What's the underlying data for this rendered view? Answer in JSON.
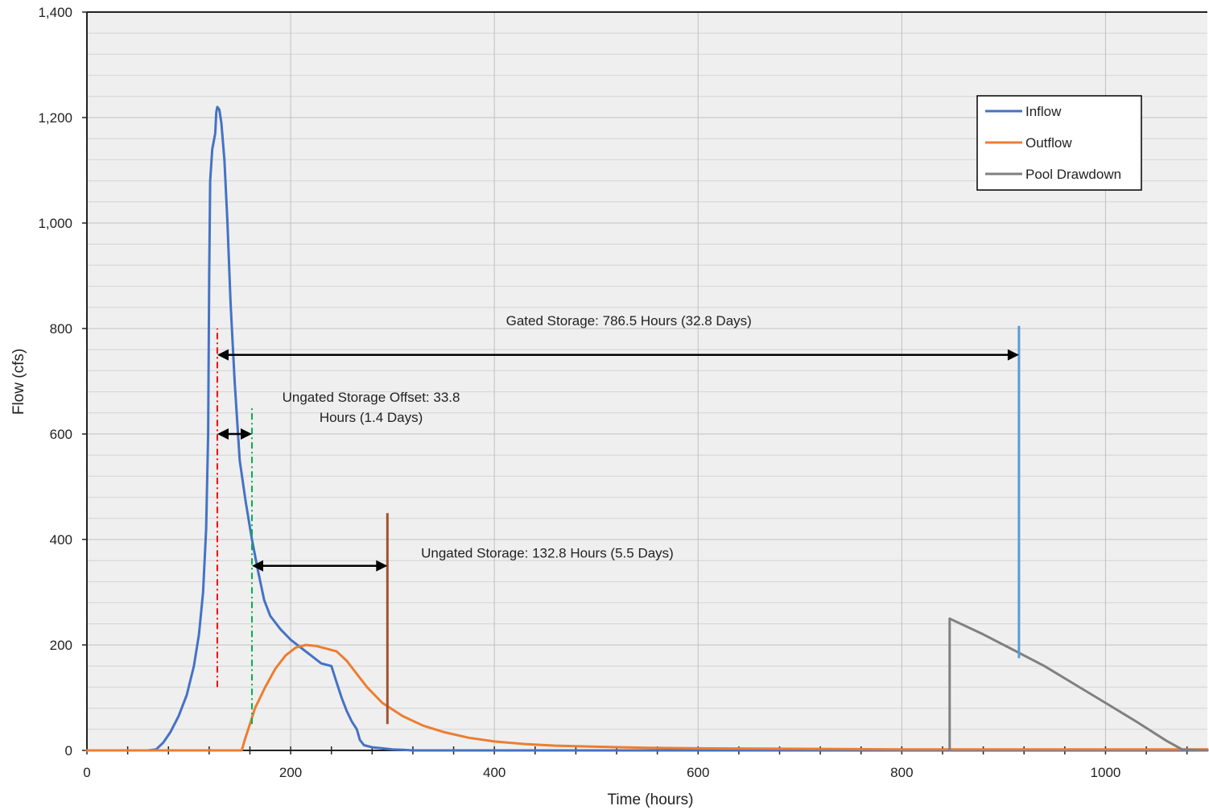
{
  "chart_data": {
    "type": "line",
    "title": "",
    "xlabel": "Time (hours)",
    "ylabel": "Flow (cfs)",
    "xlim": [
      0,
      1100
    ],
    "ylim": [
      0,
      1400
    ],
    "x_ticks": [
      0,
      200,
      400,
      600,
      800,
      1000
    ],
    "x_tick_labels": [
      "0",
      "200",
      "400",
      "600",
      "800",
      "1000"
    ],
    "y_ticks": [
      0,
      200,
      400,
      600,
      800,
      1000,
      1200,
      1400
    ],
    "y_tick_labels": [
      "0",
      "200",
      "400",
      "600",
      "800",
      "1,000",
      "1,200",
      "1,400"
    ],
    "grid": true,
    "legend_position": "top-right",
    "series": [
      {
        "name": "Inflow",
        "color": "#4472C4",
        "points": [
          [
            0,
            0
          ],
          [
            60,
            0
          ],
          [
            68,
            2
          ],
          [
            75,
            15
          ],
          [
            82,
            35
          ],
          [
            90,
            65
          ],
          [
            98,
            105
          ],
          [
            105,
            160
          ],
          [
            110,
            220
          ],
          [
            114,
            300
          ],
          [
            117,
            420
          ],
          [
            119,
            600
          ],
          [
            120,
            900
          ],
          [
            121,
            1080
          ],
          [
            123,
            1140
          ],
          [
            126,
            1170
          ],
          [
            127,
            1210
          ],
          [
            128,
            1220
          ],
          [
            130,
            1215
          ],
          [
            132,
            1190
          ],
          [
            135,
            1120
          ],
          [
            138,
            1000
          ],
          [
            141,
            850
          ],
          [
            145,
            700
          ],
          [
            150,
            550
          ],
          [
            156,
            470
          ],
          [
            162,
            400
          ],
          [
            168,
            340
          ],
          [
            174,
            285
          ],
          [
            180,
            255
          ],
          [
            190,
            230
          ],
          [
            200,
            210
          ],
          [
            210,
            195
          ],
          [
            220,
            180
          ],
          [
            230,
            165
          ],
          [
            240,
            160
          ],
          [
            245,
            130
          ],
          [
            250,
            100
          ],
          [
            255,
            75
          ],
          [
            260,
            55
          ],
          [
            265,
            40
          ],
          [
            268,
            20
          ],
          [
            272,
            10
          ],
          [
            280,
            6
          ],
          [
            290,
            4
          ],
          [
            300,
            2
          ],
          [
            310,
            1
          ],
          [
            320,
            0
          ],
          [
            1100,
            0
          ]
        ]
      },
      {
        "name": "Outflow",
        "color": "#ED7D31",
        "points": [
          [
            0,
            0
          ],
          [
            152,
            0
          ],
          [
            155,
            20
          ],
          [
            160,
            50
          ],
          [
            165,
            80
          ],
          [
            175,
            120
          ],
          [
            185,
            155
          ],
          [
            195,
            180
          ],
          [
            205,
            195
          ],
          [
            215,
            200
          ],
          [
            225,
            198
          ],
          [
            235,
            193
          ],
          [
            245,
            188
          ],
          [
            255,
            170
          ],
          [
            265,
            145
          ],
          [
            275,
            120
          ],
          [
            290,
            90
          ],
          [
            310,
            65
          ],
          [
            330,
            47
          ],
          [
            350,
            35
          ],
          [
            375,
            24
          ],
          [
            400,
            17
          ],
          [
            430,
            12
          ],
          [
            460,
            9
          ],
          [
            500,
            7
          ],
          [
            550,
            5
          ],
          [
            600,
            4
          ],
          [
            700,
            3
          ],
          [
            800,
            2
          ],
          [
            900,
            2
          ],
          [
            1000,
            2
          ],
          [
            1100,
            2
          ]
        ]
      },
      {
        "name": "Pool Drawdown",
        "color": "#808080",
        "points": [
          [
            847,
            0
          ],
          [
            847,
            250
          ],
          [
            880,
            220
          ],
          [
            910,
            190
          ],
          [
            940,
            160
          ],
          [
            970,
            125
          ],
          [
            1000,
            90
          ],
          [
            1030,
            55
          ],
          [
            1060,
            18
          ],
          [
            1075,
            2
          ],
          [
            1100,
            0
          ]
        ]
      }
    ],
    "reference_lines": [
      {
        "x": 128,
        "y_range": [
          120,
          800
        ],
        "color": "#FF0000",
        "style": "dash-dot"
      },
      {
        "x": 162,
        "y_range": [
          50,
          650
        ],
        "color": "#00B050",
        "style": "dash-dot"
      },
      {
        "x": 295,
        "y_range": [
          50,
          450
        ],
        "color": "#A0522D",
        "style": "solid"
      },
      {
        "x": 915,
        "y_range": [
          175,
          805
        ],
        "color": "#5B9BD5",
        "style": "solid"
      }
    ],
    "arrows": [
      {
        "x1": 128,
        "x2": 915,
        "y": 750
      },
      {
        "x1": 128,
        "x2": 162,
        "y": 600
      },
      {
        "x1": 162,
        "x2": 295,
        "y": 350
      }
    ],
    "annotations": [
      {
        "lines": [
          "Gated Storage: 786.5 Hours (32.8 Days)"
        ],
        "x": 532,
        "y": 815
      },
      {
        "lines": [
          "Ungated Storage Offset:  33.8",
          "Hours (1.4 Days)"
        ],
        "x": 279,
        "y": 670
      },
      {
        "lines": [
          "Ungated Storage: 132.8 Hours (5.5 Days)"
        ],
        "x": 452,
        "y": 375
      }
    ]
  }
}
